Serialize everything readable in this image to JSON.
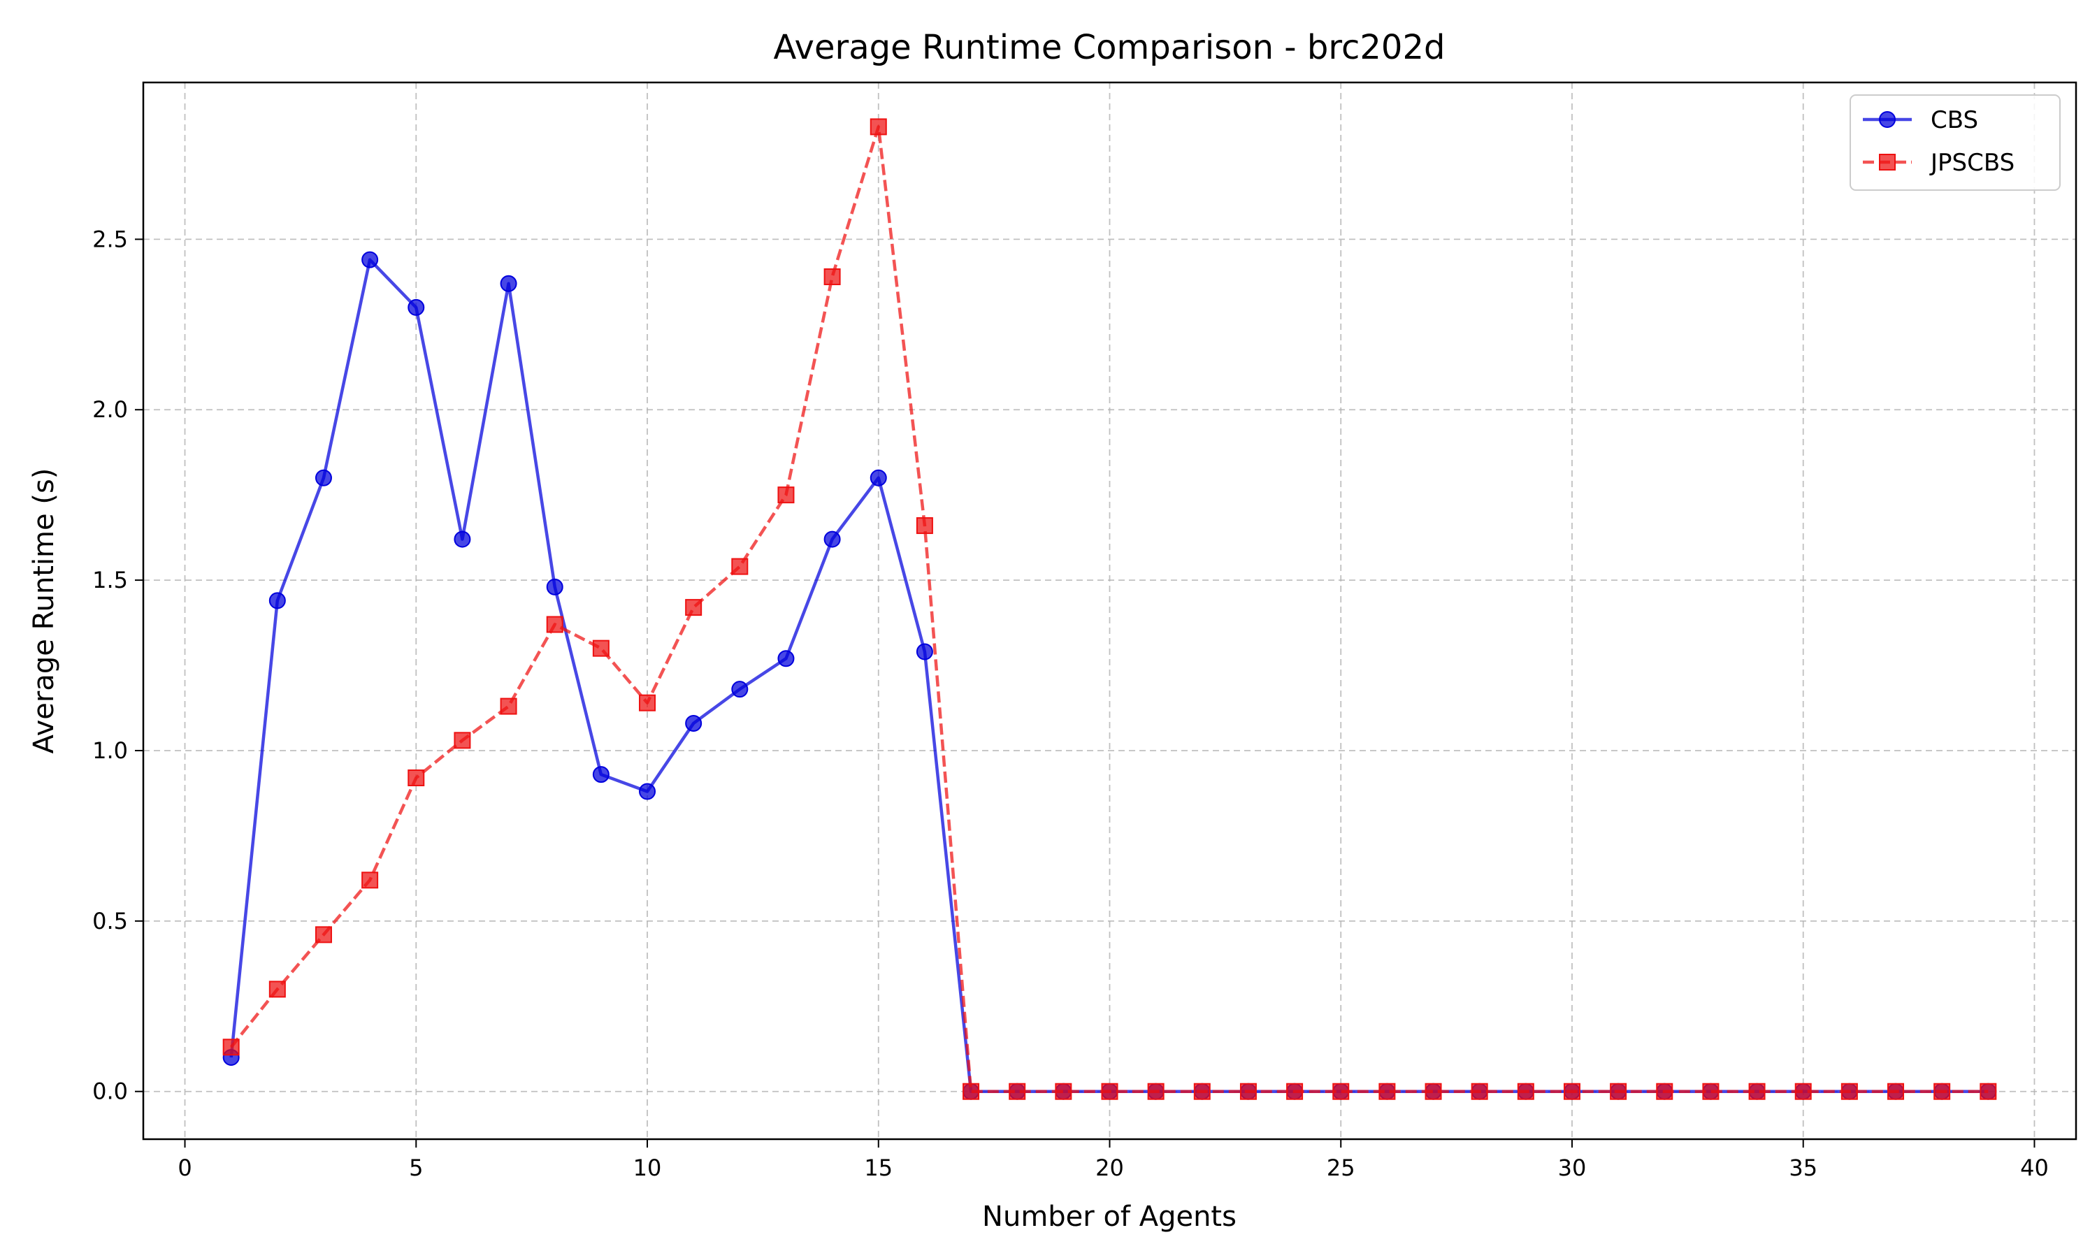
{
  "chart_data": {
    "type": "line",
    "title": "Average Runtime Comparison - brc202d",
    "xlabel": "Number of Agents",
    "ylabel": "Average Runtime (s)",
    "xlim": [
      -0.9,
      40.9
    ],
    "ylim": [
      -0.14,
      2.96
    ],
    "xticks": [
      0,
      5,
      10,
      15,
      20,
      25,
      30,
      35,
      40
    ],
    "xtick_labels": [
      "0",
      "5",
      "10",
      "15",
      "20",
      "25",
      "30",
      "35",
      "40"
    ],
    "yticks": [
      0.0,
      0.5,
      1.0,
      1.5,
      2.0,
      2.5
    ],
    "ytick_labels": [
      "0.0",
      "0.5",
      "1.0",
      "1.5",
      "2.0",
      "2.5"
    ],
    "grid": true,
    "legend_position": "top-right",
    "x": [
      1,
      2,
      3,
      4,
      5,
      6,
      7,
      8,
      9,
      10,
      11,
      12,
      13,
      14,
      15,
      16,
      17,
      18,
      19,
      20,
      21,
      22,
      23,
      24,
      25,
      26,
      27,
      28,
      29,
      30,
      31,
      32,
      33,
      34,
      35,
      36,
      37,
      38,
      39
    ],
    "series": [
      {
        "name": "CBS",
        "color": "#0000dd",
        "line_style": "solid",
        "marker": "circle",
        "values": [
          0.1,
          1.44,
          1.8,
          2.44,
          2.3,
          1.62,
          2.37,
          1.48,
          0.93,
          0.88,
          1.08,
          1.18,
          1.27,
          1.62,
          1.8,
          1.29,
          0,
          0,
          0,
          0,
          0,
          0,
          0,
          0,
          0,
          0,
          0,
          0,
          0,
          0,
          0,
          0,
          0,
          0,
          0,
          0,
          0,
          0,
          0
        ]
      },
      {
        "name": "JPSCBS",
        "color": "#ee1111",
        "line_style": "dashed",
        "marker": "square",
        "values": [
          0.13,
          0.3,
          0.46,
          0.62,
          0.92,
          1.03,
          1.13,
          1.37,
          1.3,
          1.14,
          1.42,
          1.54,
          1.75,
          2.39,
          2.83,
          1.66,
          0,
          0,
          0,
          0,
          0,
          0,
          0,
          0,
          0,
          0,
          0,
          0,
          0,
          0,
          0,
          0,
          0,
          0,
          0,
          0,
          0,
          0,
          0
        ]
      }
    ]
  }
}
